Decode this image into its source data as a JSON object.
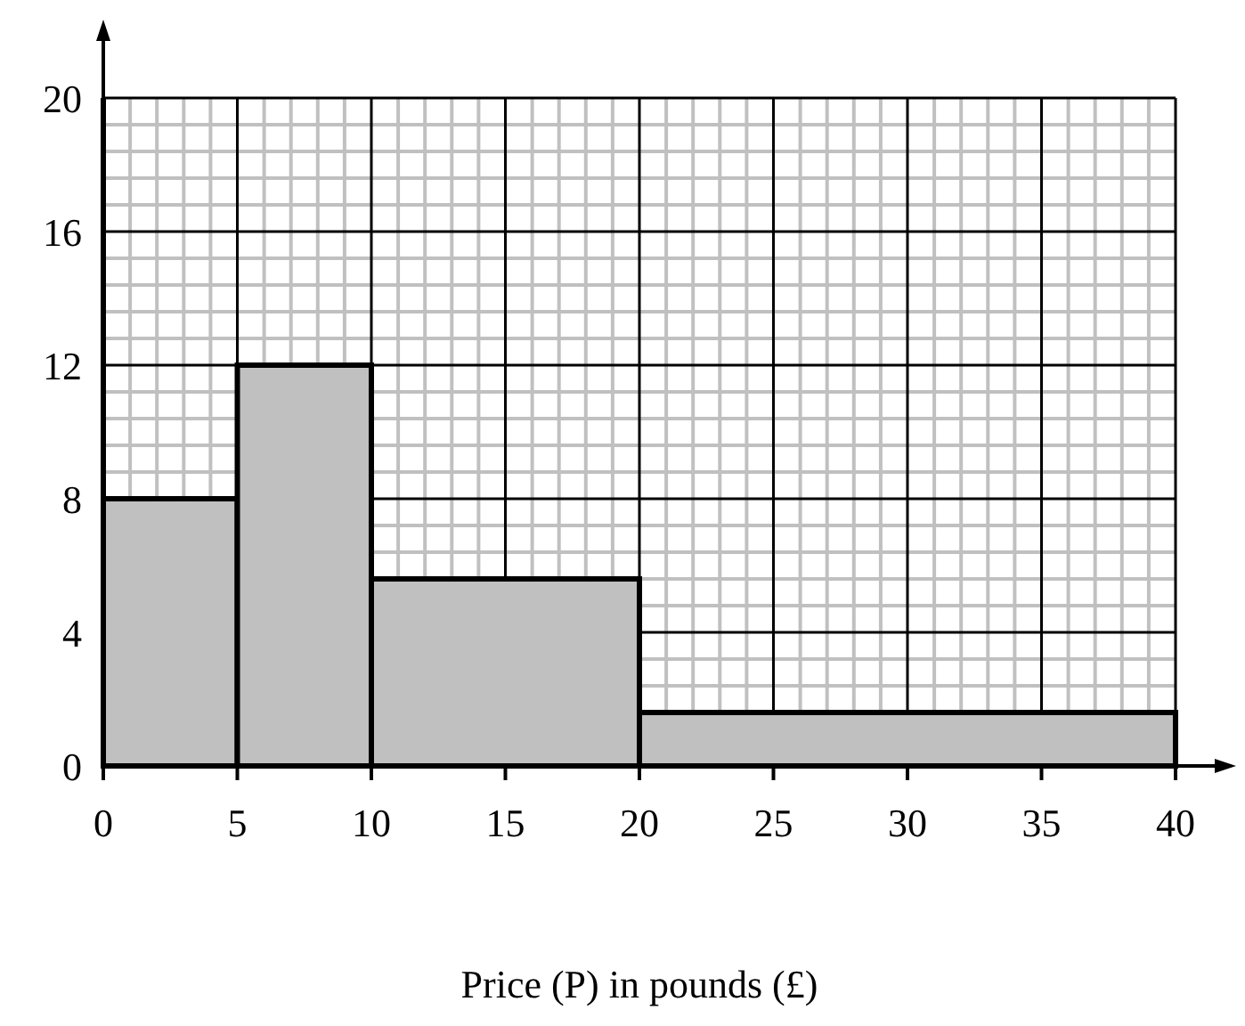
{
  "chart_data": {
    "type": "histogram",
    "xlabel": "Price (P) in pounds (£)",
    "bins": [
      0,
      5,
      10,
      20,
      40
    ],
    "values": [
      8,
      12,
      5.6,
      1.6
    ],
    "color": "#c0c0c0",
    "xlim": [
      0,
      40
    ],
    "xticks": [
      0,
      5,
      10,
      15,
      20,
      25,
      30,
      35,
      40
    ],
    "ylim": [
      0,
      20
    ],
    "yticks": [
      0,
      4,
      8,
      12,
      16,
      20
    ],
    "grid": true
  }
}
